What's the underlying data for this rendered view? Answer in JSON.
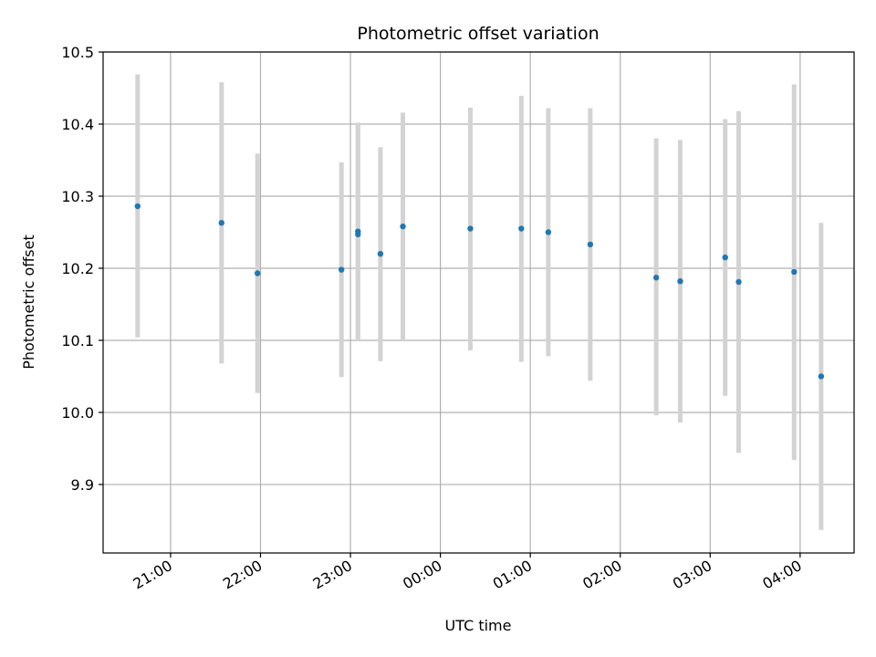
{
  "chart_data": {
    "type": "scatter",
    "title": "Photometric offset variation",
    "xlabel": "UTC time",
    "ylabel": "Photometric offset",
    "grid": true,
    "x_axis": {
      "kind": "time",
      "range": [
        "20:15",
        "04:36"
      ],
      "ticks": [
        "21:00",
        "22:00",
        "23:00",
        "00:00",
        "01:00",
        "02:00",
        "03:00",
        "04:00"
      ]
    },
    "y_axis": {
      "range": [
        9.805,
        10.5
      ],
      "ticks": [
        "9.9",
        "10.0",
        "10.1",
        "10.2",
        "10.3",
        "10.4",
        "10.5"
      ]
    },
    "colors": {
      "point": "#1f77b4",
      "errorbar": "#d3d3d3",
      "grid": "#b0b0b0"
    },
    "points": [
      {
        "time": "20:38",
        "y": 10.286,
        "lo": 10.104,
        "hi": 10.469
      },
      {
        "time": "21:34",
        "y": 10.263,
        "lo": 10.068,
        "hi": 10.458
      },
      {
        "time": "21:58",
        "y": 10.193,
        "lo": 10.027,
        "hi": 10.359
      },
      {
        "time": "22:54",
        "y": 10.198,
        "lo": 10.049,
        "hi": 10.347
      },
      {
        "time": "23:05",
        "y": 10.251,
        "lo": 10.1,
        "hi": 10.402
      },
      {
        "time": "23:05",
        "y": 10.247,
        "lo": 10.1,
        "hi": 10.4
      },
      {
        "time": "23:20",
        "y": 10.22,
        "lo": 10.071,
        "hi": 10.368
      },
      {
        "time": "23:35",
        "y": 10.258,
        "lo": 10.1,
        "hi": 10.416
      },
      {
        "time": "00:20",
        "y": 10.255,
        "lo": 10.086,
        "hi": 10.423
      },
      {
        "time": "00:54",
        "y": 10.255,
        "lo": 10.07,
        "hi": 10.439
      },
      {
        "time": "01:12",
        "y": 10.25,
        "lo": 10.078,
        "hi": 10.422
      },
      {
        "time": "01:40",
        "y": 10.233,
        "lo": 10.044,
        "hi": 10.422
      },
      {
        "time": "02:24",
        "y": 10.187,
        "lo": 9.996,
        "hi": 10.38
      },
      {
        "time": "02:40",
        "y": 10.182,
        "lo": 9.986,
        "hi": 10.378
      },
      {
        "time": "03:10",
        "y": 10.215,
        "lo": 10.023,
        "hi": 10.407
      },
      {
        "time": "03:19",
        "y": 10.181,
        "lo": 9.944,
        "hi": 10.418
      },
      {
        "time": "03:56",
        "y": 10.195,
        "lo": 9.934,
        "hi": 10.455
      },
      {
        "time": "04:14",
        "y": 10.05,
        "lo": 9.837,
        "hi": 10.263
      }
    ]
  }
}
